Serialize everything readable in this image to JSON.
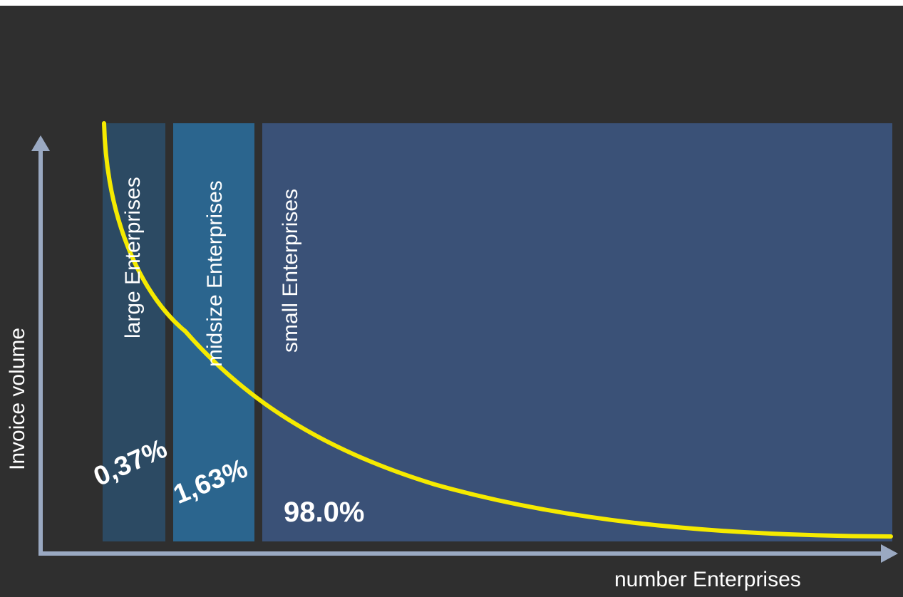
{
  "axes": {
    "y_label": "Invoice volume",
    "x_label": "number Enterprises"
  },
  "segments": [
    {
      "label": "large Enterprises",
      "percent": "0,37%",
      "color": "#2c4a63"
    },
    {
      "label": "midsize Enterprises",
      "percent": "1,63%",
      "color": "#2b658e"
    },
    {
      "label": "small Enterprises",
      "percent": "98.0%",
      "color": "#3a5177"
    }
  ],
  "colors": {
    "background": "#2f2f2f",
    "curve": "#f5ea00",
    "axis": "#9aa9c2",
    "text": "#ffffff"
  }
}
